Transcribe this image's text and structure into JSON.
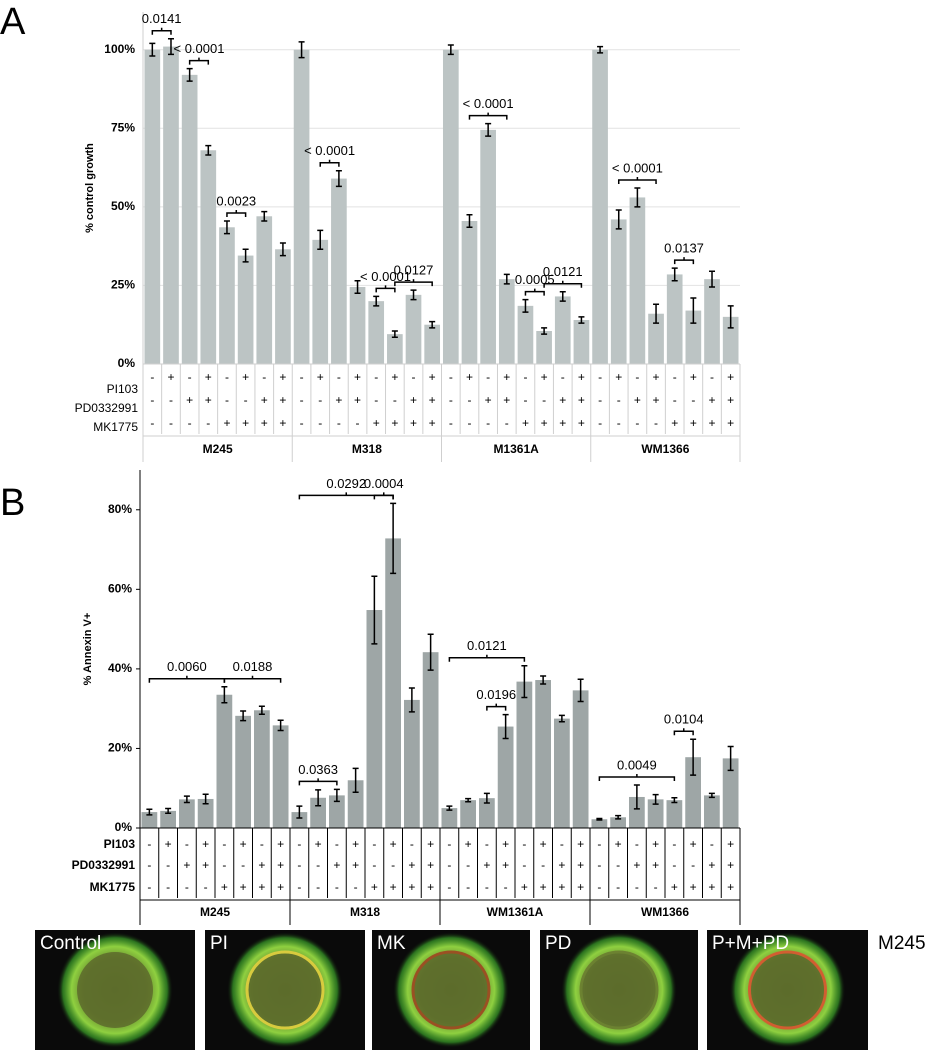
{
  "chart_data": [
    {
      "type": "bar",
      "panel_label": "A",
      "ylabel": "% control growth",
      "color": "#bcc4c4",
      "grid": true,
      "ylim": [
        0,
        112
      ],
      "yticks": [
        {
          "value": 0,
          "label": "0%"
        },
        {
          "value": 25,
          "label": "25%"
        },
        {
          "value": 50,
          "label": "50%"
        },
        {
          "value": 75,
          "label": "75%"
        },
        {
          "value": 100,
          "label": "100%"
        }
      ],
      "groups": [
        "M245",
        "M318",
        "M1361A",
        "WM1366"
      ],
      "conditions": [
        {
          "label": "PI103",
          "signs": [
            "-",
            "+",
            "-",
            "+",
            "-",
            "+",
            "-",
            "+"
          ]
        },
        {
          "label": "PD0332991",
          "signs": [
            "-",
            "-",
            "+",
            "+",
            "-",
            "-",
            "+",
            "+"
          ]
        },
        {
          "label": "MK1775",
          "signs": [
            "-",
            "-",
            "-",
            "-",
            "+",
            "+",
            "+",
            "+"
          ]
        }
      ],
      "values": [
        100,
        101,
        92,
        68,
        43.5,
        34.5,
        47,
        36.5,
        100,
        39.5,
        59,
        24.5,
        20,
        9.5,
        22,
        12.5,
        100,
        45.5,
        74.5,
        27,
        18.5,
        10.5,
        21.5,
        14,
        100,
        46,
        53,
        16,
        28.5,
        17,
        27,
        15
      ],
      "errors": [
        2,
        2.5,
        2,
        1.5,
        2,
        2,
        1.5,
        2,
        2.5,
        3,
        2.5,
        2,
        1.5,
        1,
        1.5,
        1,
        1.5,
        2,
        2,
        1.5,
        2,
        1,
        1.5,
        1,
        1,
        3,
        3,
        3,
        2,
        4,
        2.5,
        3.5
      ],
      "annotations": [
        {
          "label": "0.0141",
          "from": 0,
          "to": 1
        },
        {
          "label": "< 0.0001",
          "from": 2,
          "to": 3
        },
        {
          "label": "0.0023",
          "from": 4,
          "to": 5
        },
        {
          "label": "< 0.0001",
          "from": 9,
          "to": 10
        },
        {
          "label": "< 0.0001",
          "from": 12,
          "to": 13
        },
        {
          "label": "0.0127",
          "from": 13,
          "to": 15
        },
        {
          "label": "< 0.0001",
          "from": 17,
          "to": 19
        },
        {
          "label": "0.0005",
          "from": 20,
          "to": 21
        },
        {
          "label": "0.0121",
          "from": 21,
          "to": 23
        },
        {
          "label": "< 0.0001",
          "from": 25,
          "to": 27
        },
        {
          "label": "0.0137",
          "from": 28,
          "to": 29
        }
      ]
    },
    {
      "type": "bar",
      "panel_label": "B",
      "ylabel": "% Annexin V+",
      "color": "#9ea6a6",
      "grid": false,
      "ylim": [
        0,
        90
      ],
      "yticks": [
        {
          "value": 0,
          "label": "0%"
        },
        {
          "value": 20,
          "label": "20%"
        },
        {
          "value": 40,
          "label": "40%"
        },
        {
          "value": 60,
          "label": "60%"
        },
        {
          "value": 80,
          "label": "80%"
        }
      ],
      "groups": [
        "M245",
        "M318",
        "WM1361A",
        "WM1366"
      ],
      "conditions": [
        {
          "label": "PI103",
          "signs": [
            "-",
            "+",
            "-",
            "+",
            "-",
            "+",
            "-",
            "+"
          ]
        },
        {
          "label": "PD0332991",
          "signs": [
            "-",
            "-",
            "+",
            "+",
            "-",
            "-",
            "+",
            "+"
          ]
        },
        {
          "label": "MK1775",
          "signs": [
            "-",
            "-",
            "-",
            "-",
            "+",
            "+",
            "+",
            "+"
          ]
        }
      ],
      "values": [
        4,
        4.3,
        7.2,
        7.3,
        33.5,
        28.2,
        29.6,
        25.8,
        4,
        7.6,
        8.2,
        12,
        54.8,
        72.8,
        32.2,
        44.2,
        5,
        7,
        7.5,
        25.5,
        36.8,
        37.2,
        27.5,
        34.6,
        2.2,
        2.7,
        7.8,
        7.2,
        7,
        17.8,
        8.2,
        17.5
      ],
      "errors": [
        0.7,
        0.6,
        0.8,
        1.2,
        2,
        1.2,
        1,
        1.3,
        1.5,
        2,
        1.5,
        3,
        8.5,
        8.8,
        3,
        4.5,
        0.5,
        0.4,
        1.2,
        3,
        4,
        1,
        0.8,
        2.8,
        0.2,
        0.4,
        3,
        1.2,
        0.6,
        4.5,
        0.5,
        3
      ],
      "annotations": [
        {
          "label": "0.0060",
          "from": 0,
          "to": 4
        },
        {
          "label": "0.0188",
          "from": 4,
          "to": 7
        },
        {
          "label": "0.0363",
          "from": 8,
          "to": 10
        },
        {
          "label": "0.0292",
          "from": 8,
          "to": 13
        },
        {
          "label": "0.0004",
          "from": 12,
          "to": 13
        },
        {
          "label": "0.0121",
          "from": 16,
          "to": 20
        },
        {
          "label": "0.0196",
          "from": 18,
          "to": 19
        },
        {
          "label": "0.0049",
          "from": 24,
          "to": 28
        },
        {
          "label": "0.0104",
          "from": 28,
          "to": 29
        }
      ]
    }
  ],
  "images": {
    "labels": [
      "Control",
      "PI",
      "MK",
      "PD",
      "P+M+PD"
    ],
    "side_label": "M245"
  }
}
